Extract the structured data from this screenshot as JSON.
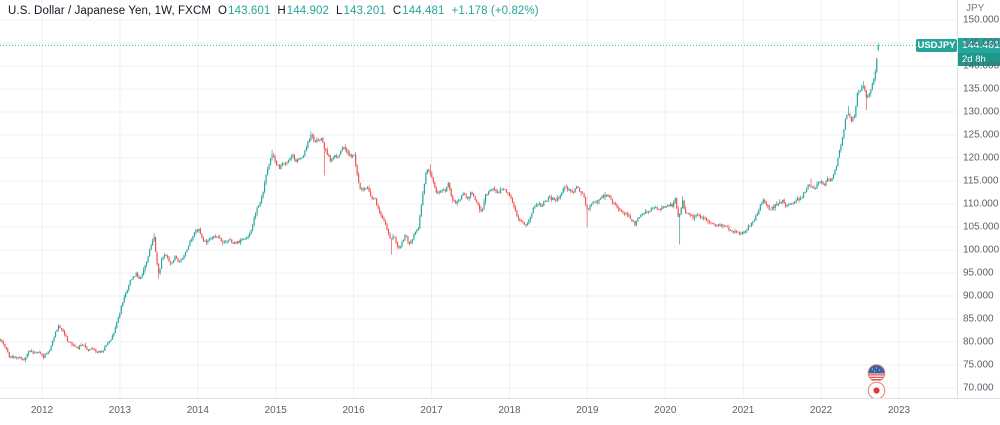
{
  "header": {
    "title": "U.S. Dollar / Japanese Yen, 1W, FXCM",
    "o_label": "O",
    "o": "143.601",
    "h_label": "H",
    "h": "144.902",
    "l_label": "L",
    "l": "143.201",
    "c_label": "C",
    "c": "144.481",
    "change": "+1.178 (+0.82%)"
  },
  "price_axis": {
    "currency_label": "JPY",
    "last_price": "144.481",
    "countdown": "2d 8h",
    "ticks": [
      {
        "value": 150,
        "label": "150.000"
      },
      {
        "value": 145,
        "label": "145.000"
      },
      {
        "value": 140,
        "label": "140.000"
      },
      {
        "value": 135,
        "label": "135.000"
      },
      {
        "value": 130,
        "label": "130.000"
      },
      {
        "value": 125,
        "label": "125.000"
      },
      {
        "value": 120,
        "label": "120.000"
      },
      {
        "value": 115,
        "label": "115.000"
      },
      {
        "value": 110,
        "label": "110.000"
      },
      {
        "value": 105,
        "label": "105.000"
      },
      {
        "value": 100,
        "label": "100.000"
      },
      {
        "value": 95,
        "label": "95.000"
      },
      {
        "value": 90,
        "label": "90.000"
      },
      {
        "value": 85,
        "label": "85.000"
      },
      {
        "value": 80,
        "label": "80.000"
      },
      {
        "value": 75,
        "label": "75.000"
      },
      {
        "value": 70,
        "label": "70.000"
      }
    ]
  },
  "time_axis": {
    "years": [
      {
        "t": 2012,
        "label": "2012"
      },
      {
        "t": 2013,
        "label": "2013"
      },
      {
        "t": 2014,
        "label": "2014"
      },
      {
        "t": 2015,
        "label": "2015"
      },
      {
        "t": 2016,
        "label": "2016"
      },
      {
        "t": 2017,
        "label": "2017"
      },
      {
        "t": 2018,
        "label": "2018"
      },
      {
        "t": 2019,
        "label": "2019"
      },
      {
        "t": 2020,
        "label": "2020"
      },
      {
        "t": 2021,
        "label": "2021"
      },
      {
        "t": 2022,
        "label": "2022"
      },
      {
        "t": 2023,
        "label": "2023"
      }
    ]
  },
  "price_line_label": "USDJPY",
  "colors": {
    "up": "#26A69A",
    "down": "#EF5350",
    "grid": "#edf0f4",
    "axis_border": "#dde1e8",
    "axis_text": "#5a5f6a",
    "header_text": "#131722",
    "price_line": "#26A69A",
    "flag_ring": "#EA7A72",
    "flag_canton": "#3D5FA5",
    "flag_stripe": "#E04A41",
    "flag_japan_disc": "#E0392F"
  },
  "chart_data": {
    "type": "candlestick",
    "title": "U.S. Dollar / Japanese Yen",
    "symbol": "USDJPY",
    "timeframe": "1W",
    "exchange": "FXCM",
    "ylabel": "JPY",
    "grid": true,
    "x_domain": [
      2011.465,
      2023.74
    ],
    "y_axis": {
      "min": 68.5,
      "max": 153.9,
      "tick_step": 5,
      "ticks": [
        150,
        145,
        140,
        135,
        130,
        125,
        120,
        115,
        110,
        105,
        100,
        95,
        90,
        85,
        80,
        75,
        70
      ]
    },
    "last_candle": {
      "o": 143.601,
      "h": 144.902,
      "l": 143.201,
      "c": 144.481
    },
    "current_price": 144.481,
    "anchors": [
      [
        2011.465,
        80.5
      ],
      [
        2011.52,
        79.2
      ],
      [
        2011.58,
        76.9
      ],
      [
        2011.65,
        76.8
      ],
      [
        2011.72,
        76.6
      ],
      [
        2011.78,
        76.1
      ],
      [
        2011.82,
        78.2
      ],
      [
        2011.88,
        77.7
      ],
      [
        2011.95,
        77.7
      ],
      [
        2012.02,
        76.8
      ],
      [
        2012.1,
        78.3
      ],
      [
        2012.16,
        81.5
      ],
      [
        2012.21,
        83.5
      ],
      [
        2012.27,
        82.4
      ],
      [
        2012.33,
        80.2
      ],
      [
        2012.4,
        79.4
      ],
      [
        2012.46,
        78.7
      ],
      [
        2012.52,
        79.5
      ],
      [
        2012.58,
        78.3
      ],
      [
        2012.65,
        78.4
      ],
      [
        2012.72,
        77.8
      ],
      [
        2012.78,
        78.1
      ],
      [
        2012.84,
        79.9
      ],
      [
        2012.9,
        81.1
      ],
      [
        2012.96,
        84.2
      ],
      [
        2013.02,
        87.8
      ],
      [
        2013.08,
        91.0
      ],
      [
        2013.14,
        93.5
      ],
      [
        2013.2,
        94.8
      ],
      [
        2013.26,
        93.6
      ],
      [
        2013.32,
        96.6
      ],
      [
        2013.37,
        99.0
      ],
      [
        2013.41,
        101.6
      ],
      [
        2013.44,
        102.9
      ],
      [
        2013.47,
        97.6
      ],
      [
        2013.5,
        94.9
      ],
      [
        2013.54,
        98.3
      ],
      [
        2013.58,
        99.3
      ],
      [
        2013.62,
        97.9
      ],
      [
        2013.66,
        97.0
      ],
      [
        2013.71,
        98.7
      ],
      [
        2013.76,
        97.3
      ],
      [
        2013.81,
        98.3
      ],
      [
        2013.86,
        100.0
      ],
      [
        2013.91,
        102.2
      ],
      [
        2013.96,
        103.9
      ],
      [
        2014.01,
        104.5
      ],
      [
        2014.05,
        102.3
      ],
      [
        2014.1,
        101.8
      ],
      [
        2014.15,
        102.3
      ],
      [
        2014.21,
        103.3
      ],
      [
        2014.27,
        102.5
      ],
      [
        2014.33,
        101.8
      ],
      [
        2014.4,
        102.4
      ],
      [
        2014.46,
        101.5
      ],
      [
        2014.52,
        101.7
      ],
      [
        2014.58,
        102.4
      ],
      [
        2014.64,
        103.0
      ],
      [
        2014.7,
        105.1
      ],
      [
        2014.75,
        108.8
      ],
      [
        2014.79,
        109.8
      ],
      [
        2014.84,
        112.5
      ],
      [
        2014.88,
        116.5
      ],
      [
        2014.92,
        119.0
      ],
      [
        2014.96,
        120.7
      ],
      [
        2015.0,
        119.0
      ],
      [
        2015.05,
        117.8
      ],
      [
        2015.1,
        118.8
      ],
      [
        2015.15,
        119.2
      ],
      [
        2015.21,
        120.8
      ],
      [
        2015.26,
        119.2
      ],
      [
        2015.32,
        119.9
      ],
      [
        2015.38,
        121.5
      ],
      [
        2015.43,
        124.2
      ],
      [
        2015.46,
        125.3
      ],
      [
        2015.5,
        123.2
      ],
      [
        2015.54,
        123.9
      ],
      [
        2015.59,
        124.2
      ],
      [
        2015.63,
        122.0
      ],
      [
        2015.66,
        121.0
      ],
      [
        2015.7,
        119.5
      ],
      [
        2015.74,
        120.4
      ],
      [
        2015.79,
        120.0
      ],
      [
        2015.83,
        121.3
      ],
      [
        2015.88,
        122.8
      ],
      [
        2015.92,
        121.1
      ],
      [
        2015.96,
        120.4
      ],
      [
        2016.0,
        121.0
      ],
      [
        2016.04,
        117.3
      ],
      [
        2016.08,
        113.4
      ],
      [
        2016.12,
        112.8
      ],
      [
        2016.17,
        113.6
      ],
      [
        2016.22,
        111.6
      ],
      [
        2016.27,
        111.3
      ],
      [
        2016.32,
        108.7
      ],
      [
        2016.37,
        107.1
      ],
      [
        2016.41,
        105.5
      ],
      [
        2016.44,
        104.1
      ],
      [
        2016.48,
        102.2
      ],
      [
        2016.52,
        102.8
      ],
      [
        2016.56,
        101.1
      ],
      [
        2016.6,
        100.3
      ],
      [
        2016.63,
        102.0
      ],
      [
        2016.67,
        103.4
      ],
      [
        2016.71,
        101.1
      ],
      [
        2016.75,
        102.0
      ],
      [
        2016.79,
        104.2
      ],
      [
        2016.83,
        104.8
      ],
      [
        2016.86,
        108.4
      ],
      [
        2016.9,
        113.2
      ],
      [
        2016.94,
        117.8
      ],
      [
        2016.98,
        117.0
      ],
      [
        2017.02,
        114.5
      ],
      [
        2017.06,
        112.8
      ],
      [
        2017.1,
        112.2
      ],
      [
        2017.14,
        113.3
      ],
      [
        2017.18,
        112.9
      ],
      [
        2017.22,
        114.6
      ],
      [
        2017.26,
        111.3
      ],
      [
        2017.31,
        110.0
      ],
      [
        2017.36,
        111.0
      ],
      [
        2017.41,
        112.2
      ],
      [
        2017.46,
        111.3
      ],
      [
        2017.51,
        112.6
      ],
      [
        2017.56,
        110.8
      ],
      [
        2017.61,
        109.3
      ],
      [
        2017.65,
        108.2
      ],
      [
        2017.69,
        112.0
      ],
      [
        2017.74,
        112.8
      ],
      [
        2017.79,
        113.6
      ],
      [
        2017.84,
        112.2
      ],
      [
        2017.89,
        113.2
      ],
      [
        2017.94,
        113.0
      ],
      [
        2017.99,
        112.2
      ],
      [
        2018.03,
        110.7
      ],
      [
        2018.07,
        108.6
      ],
      [
        2018.11,
        106.6
      ],
      [
        2018.16,
        106.3
      ],
      [
        2018.21,
        105.3
      ],
      [
        2018.26,
        107.0
      ],
      [
        2018.31,
        109.1
      ],
      [
        2018.36,
        110.3
      ],
      [
        2018.41,
        109.6
      ],
      [
        2018.46,
        110.7
      ],
      [
        2018.51,
        111.4
      ],
      [
        2018.56,
        111.0
      ],
      [
        2018.61,
        111.1
      ],
      [
        2018.66,
        112.1
      ],
      [
        2018.71,
        113.7
      ],
      [
        2018.76,
        113.2
      ],
      [
        2018.81,
        112.5
      ],
      [
        2018.86,
        113.6
      ],
      [
        2018.91,
        112.8
      ],
      [
        2018.96,
        111.5
      ],
      [
        2019.0,
        108.5
      ],
      [
        2019.04,
        109.7
      ],
      [
        2019.08,
        110.5
      ],
      [
        2019.13,
        110.7
      ],
      [
        2019.18,
        111.5
      ],
      [
        2019.23,
        111.9
      ],
      [
        2019.28,
        111.7
      ],
      [
        2019.33,
        109.9
      ],
      [
        2019.38,
        109.4
      ],
      [
        2019.43,
        108.3
      ],
      [
        2019.48,
        107.9
      ],
      [
        2019.52,
        107.7
      ],
      [
        2019.57,
        106.4
      ],
      [
        2019.61,
        105.7
      ],
      [
        2019.66,
        106.9
      ],
      [
        2019.71,
        107.9
      ],
      [
        2019.76,
        108.3
      ],
      [
        2019.81,
        108.7
      ],
      [
        2019.86,
        109.2
      ],
      [
        2019.91,
        108.6
      ],
      [
        2019.96,
        109.5
      ],
      [
        2020.0,
        109.4
      ],
      [
        2020.05,
        109.8
      ],
      [
        2020.09,
        109.7
      ],
      [
        2020.13,
        111.6
      ],
      [
        2020.16,
        107.5
      ],
      [
        2020.19,
        107.7
      ],
      [
        2020.22,
        110.8
      ],
      [
        2020.26,
        107.9
      ],
      [
        2020.31,
        107.5
      ],
      [
        2020.36,
        107.1
      ],
      [
        2020.41,
        107.6
      ],
      [
        2020.46,
        106.9
      ],
      [
        2020.51,
        106.9
      ],
      [
        2020.56,
        105.8
      ],
      [
        2020.61,
        106.0
      ],
      [
        2020.66,
        105.4
      ],
      [
        2020.71,
        105.5
      ],
      [
        2020.76,
        105.0
      ],
      [
        2020.81,
        104.7
      ],
      [
        2020.86,
        103.8
      ],
      [
        2020.91,
        104.1
      ],
      [
        2020.96,
        103.5
      ],
      [
        2021.0,
        103.8
      ],
      [
        2021.05,
        104.7
      ],
      [
        2021.1,
        105.4
      ],
      [
        2021.15,
        106.6
      ],
      [
        2021.2,
        108.9
      ],
      [
        2021.25,
        110.7
      ],
      [
        2021.3,
        109.7
      ],
      [
        2021.35,
        108.8
      ],
      [
        2021.4,
        109.5
      ],
      [
        2021.45,
        110.3
      ],
      [
        2021.5,
        110.8
      ],
      [
        2021.55,
        109.7
      ],
      [
        2021.6,
        110.3
      ],
      [
        2021.64,
        109.9
      ],
      [
        2021.69,
        110.9
      ],
      [
        2021.74,
        111.5
      ],
      [
        2021.79,
        112.2
      ],
      [
        2021.83,
        114.2
      ],
      [
        2021.88,
        113.9
      ],
      [
        2021.92,
        113.4
      ],
      [
        2021.96,
        114.4
      ],
      [
        2022.0,
        115.2
      ],
      [
        2022.04,
        114.2
      ],
      [
        2022.09,
        115.5
      ],
      [
        2022.13,
        115.1
      ],
      [
        2022.17,
        117.3
      ],
      [
        2022.21,
        119.2
      ],
      [
        2022.24,
        122.1
      ],
      [
        2022.28,
        124.9
      ],
      [
        2022.32,
        128.9
      ],
      [
        2022.35,
        129.9
      ],
      [
        2022.39,
        127.7
      ],
      [
        2022.43,
        129.3
      ],
      [
        2022.47,
        134.4
      ],
      [
        2022.51,
        135.0
      ],
      [
        2022.55,
        136.1
      ],
      [
        2022.58,
        133.3
      ],
      [
        2022.61,
        133.6
      ],
      [
        2022.65,
        135.4
      ],
      [
        2022.68,
        137.5
      ],
      [
        2022.705,
        140.2
      ],
      [
        2022.72,
        143.0
      ],
      [
        2022.735,
        144.481
      ]
    ],
    "events": [
      {
        "t": 2011.79,
        "low": 75.6
      },
      {
        "t": 2013.44,
        "high": 103.7
      },
      {
        "t": 2013.5,
        "low": 93.8
      },
      {
        "t": 2014.96,
        "high": 121.8
      },
      {
        "t": 2015.46,
        "high": 125.8
      },
      {
        "t": 2015.63,
        "low": 116.2
      },
      {
        "t": 2016.48,
        "low": 99.0
      },
      {
        "t": 2016.98,
        "high": 118.6
      },
      {
        "t": 2019.0,
        "low": 104.9
      },
      {
        "t": 2020.19,
        "low": 101.2
      },
      {
        "t": 2020.22,
        "high": 111.7
      },
      {
        "t": 2021.88,
        "high": 115.5
      },
      {
        "t": 2022.35,
        "high": 131.3
      },
      {
        "t": 2022.55,
        "high": 136.7
      },
      {
        "t": 2022.58,
        "low": 130.4
      }
    ]
  }
}
